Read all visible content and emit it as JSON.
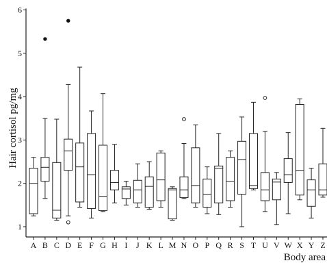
{
  "chart_data": {
    "type": "boxplot",
    "xlabel": "Body area",
    "ylabel": "Hair cortisol pg/mg",
    "ylim": [
      0.75,
      6.0
    ],
    "yticks": [
      1,
      2,
      3,
      4,
      5,
      6
    ],
    "categories": [
      "A",
      "B",
      "C",
      "D",
      "E",
      "F",
      "G",
      "H",
      "I",
      "J",
      "K",
      "L",
      "M",
      "N",
      "O",
      "P",
      "Q",
      "R",
      "S",
      "T",
      "U",
      "V",
      "W",
      "X",
      "Y",
      "Z"
    ],
    "boxes": [
      {
        "cat": "A",
        "wlo": 1.25,
        "q1": 1.3,
        "med": 2.0,
        "q3": 2.35,
        "whi": 2.6
      },
      {
        "cat": "B",
        "wlo": 1.65,
        "q1": 2.05,
        "med": 2.37,
        "q3": 2.6,
        "whi": 3.5
      },
      {
        "cat": "C",
        "wlo": 1.15,
        "q1": 1.2,
        "med": 1.38,
        "q3": 2.48,
        "whi": 3.48
      },
      {
        "cat": "D",
        "wlo": 1.25,
        "q1": 2.3,
        "med": 2.75,
        "q3": 3.02,
        "whi": 4.28
      },
      {
        "cat": "E",
        "wlo": 1.45,
        "q1": 1.57,
        "med": 2.38,
        "q3": 2.93,
        "whi": 4.68
      },
      {
        "cat": "F",
        "wlo": 1.2,
        "q1": 1.42,
        "med": 2.2,
        "q3": 3.15,
        "whi": 3.67
      },
      {
        "cat": "G",
        "wlo": 1.35,
        "q1": 1.37,
        "med": 1.7,
        "q3": 2.88,
        "whi": 4.07
      },
      {
        "cat": "H",
        "wlo": 1.55,
        "q1": 1.85,
        "med": 2.02,
        "q3": 2.3,
        "whi": 2.9
      },
      {
        "cat": "I",
        "wlo": 1.5,
        "q1": 1.65,
        "med": 1.87,
        "q3": 1.92,
        "whi": 2.05
      },
      {
        "cat": "J",
        "wlo": 1.45,
        "q1": 1.55,
        "med": 1.85,
        "q3": 2.07,
        "whi": 2.45
      },
      {
        "cat": "K",
        "wlo": 1.4,
        "q1": 1.45,
        "med": 1.93,
        "q3": 2.15,
        "whi": 2.5
      },
      {
        "cat": "L",
        "wlo": 1.45,
        "q1": 1.6,
        "med": 2.08,
        "q3": 2.7,
        "whi": 2.75
      },
      {
        "cat": "M",
        "wlo": 1.15,
        "q1": 1.18,
        "med": 1.85,
        "q3": 1.88,
        "whi": 1.92
      },
      {
        "cat": "N",
        "wlo": 1.65,
        "q1": 1.67,
        "med": 1.85,
        "q3": 2.15,
        "whi": 2.92
      },
      {
        "cat": "O",
        "wlo": 1.45,
        "q1": 1.55,
        "med": 1.95,
        "q3": 2.82,
        "whi": 3.35
      },
      {
        "cat": "P",
        "wlo": 1.3,
        "q1": 1.45,
        "med": 1.75,
        "q3": 2.1,
        "whi": 2.38
      },
      {
        "cat": "Q",
        "wlo": 1.28,
        "q1": 1.55,
        "med": 2.35,
        "q3": 2.4,
        "whi": 3.15
      },
      {
        "cat": "R",
        "wlo": 1.45,
        "q1": 1.6,
        "med": 2.05,
        "q3": 2.6,
        "whi": 2.75
      },
      {
        "cat": "S",
        "wlo": 1.0,
        "q1": 1.75,
        "med": 2.55,
        "q3": 2.97,
        "whi": 3.53
      },
      {
        "cat": "T",
        "wlo": 1.85,
        "q1": 1.88,
        "med": 1.95,
        "q3": 3.15,
        "whi": 3.87
      },
      {
        "cat": "U",
        "wlo": 1.35,
        "q1": 1.6,
        "med": 1.85,
        "q3": 2.25,
        "whi": 3.2
      },
      {
        "cat": "V",
        "wlo": 1.05,
        "q1": 1.62,
        "med": 2.03,
        "q3": 2.1,
        "whi": 2.25
      },
      {
        "cat": "W",
        "wlo": 1.3,
        "q1": 2.02,
        "med": 2.2,
        "q3": 2.57,
        "whi": 3.17
      },
      {
        "cat": "X",
        "wlo": 1.62,
        "q1": 1.73,
        "med": 2.3,
        "q3": 3.82,
        "whi": 3.95
      },
      {
        "cat": "Y",
        "wlo": 1.2,
        "q1": 1.47,
        "med": 1.85,
        "q3": 2.08,
        "whi": 2.35
      },
      {
        "cat": "Z",
        "wlo": 1.68,
        "q1": 1.73,
        "med": 1.85,
        "q3": 2.45,
        "whi": 3.27
      }
    ],
    "outliers": [
      {
        "cat": "B",
        "value": 5.33,
        "style": "filled"
      },
      {
        "cat": "D",
        "value": 5.75,
        "style": "filled"
      },
      {
        "cat": "D",
        "value": 1.1,
        "style": "open"
      },
      {
        "cat": "N",
        "value": 3.48,
        "style": "open"
      },
      {
        "cat": "U",
        "value": 3.97,
        "style": "open"
      }
    ]
  }
}
